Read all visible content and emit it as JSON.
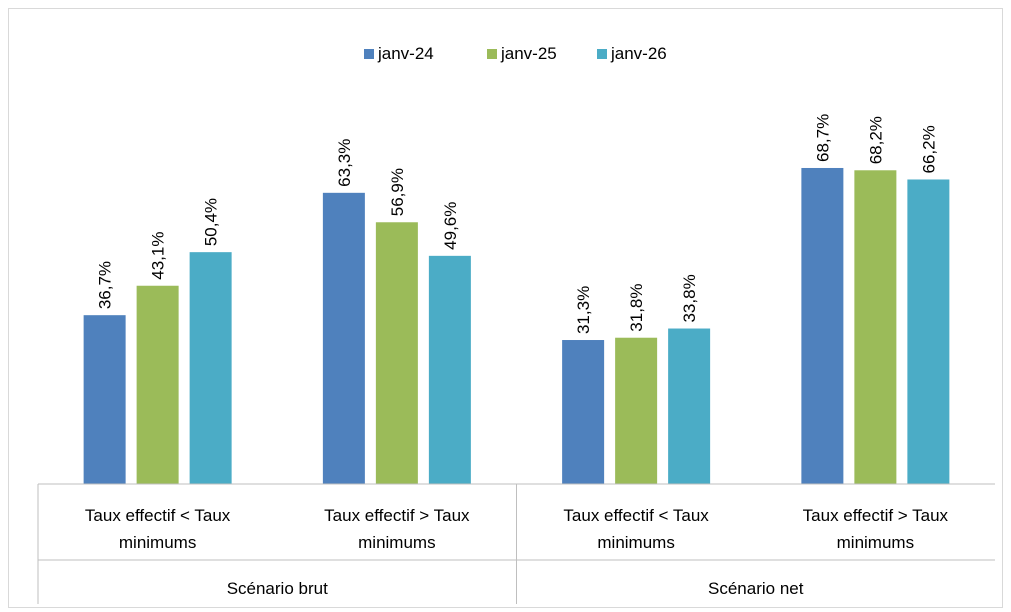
{
  "chart_data": {
    "type": "bar",
    "legend_position": "top-center",
    "grid": false,
    "ylim": [
      0,
      75
    ],
    "series": [
      {
        "name": "janv-24",
        "color": "#4f81bd",
        "values": [
          36.7,
          63.3,
          31.3,
          68.7
        ]
      },
      {
        "name": "janv-25",
        "color": "#9bbb59",
        "values": [
          43.1,
          56.9,
          31.8,
          68.2
        ]
      },
      {
        "name": "janv-26",
        "color": "#4bacc6",
        "values": [
          50.4,
          49.6,
          33.8,
          66.2
        ]
      }
    ],
    "value_labels": [
      [
        "36,7%",
        "63,3%",
        "31,3%",
        "68,7%"
      ],
      [
        "43,1%",
        "56,9%",
        "31,8%",
        "68,2%"
      ],
      [
        "50,4%",
        "49,6%",
        "33,8%",
        "66,2%"
      ]
    ],
    "categories": [
      {
        "lines": [
          "Taux effectif < Taux",
          "minimums"
        ]
      },
      {
        "lines": [
          "Taux effectif > Taux",
          "minimums"
        ]
      },
      {
        "lines": [
          "Taux effectif < Taux",
          "minimums"
        ]
      },
      {
        "lines": [
          "Taux effectif > Taux",
          "minimums"
        ]
      }
    ],
    "groups": [
      "Scénario brut",
      "Scénario net"
    ]
  }
}
